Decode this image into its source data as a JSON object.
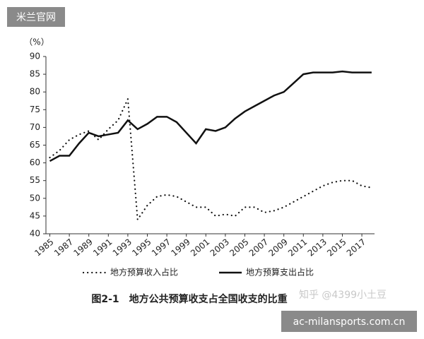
{
  "chart_data": {
    "type": "line",
    "title": "图2-1　地方公共预算收支占全国收支的比重",
    "y_label": "（%）",
    "x": [
      1985,
      1986,
      1987,
      1988,
      1989,
      1990,
      1991,
      1992,
      1993,
      1994,
      1995,
      1996,
      1997,
      1998,
      1999,
      2000,
      2001,
      2002,
      2003,
      2004,
      2005,
      2006,
      2007,
      2008,
      2009,
      2010,
      2011,
      2012,
      2013,
      2014,
      2015,
      2016,
      2017,
      2018
    ],
    "series": [
      {
        "name": "地方预算收入占比",
        "color": "#111111",
        "style": "dotted",
        "values": [
          61.5,
          63.5,
          66.5,
          68,
          69,
          66.5,
          69.5,
          72,
          78,
          44,
          48,
          50.5,
          51,
          50.5,
          49,
          47.5,
          47.5,
          45,
          45.5,
          45,
          47.5,
          47.5,
          46,
          46.5,
          47.5,
          49,
          50.5,
          52,
          53.5,
          54.5,
          55,
          55,
          53.5,
          53
        ]
      },
      {
        "name": "地方预算支出占比",
        "color": "#111111",
        "style": "solid",
        "values": [
          60.5,
          62,
          62,
          65.5,
          68.5,
          67.5,
          68,
          68.5,
          72,
          69.5,
          71,
          73,
          73,
          71.5,
          68.5,
          65.5,
          69.5,
          69,
          70,
          72.5,
          74.5,
          76,
          77.5,
          79,
          80,
          82.5,
          85,
          85.5,
          85.5,
          85.5,
          85.8,
          85.5,
          85.5,
          85.5
        ]
      }
    ],
    "xlim": [
      1984.6,
      2018.3
    ],
    "xticks": [
      1985,
      1987,
      1989,
      1991,
      1993,
      1995,
      1997,
      1999,
      2001,
      2003,
      2005,
      2007,
      2009,
      2011,
      2013,
      2015,
      2017
    ],
    "ylim": [
      40,
      90
    ],
    "yticks": [
      40,
      45,
      50,
      55,
      60,
      65,
      70,
      75,
      80,
      85,
      90
    ],
    "grid": false
  },
  "watermarks": [
    "米兰官网",
    "知乎 @4399小土豆",
    "ac-milansports.com.cn"
  ]
}
